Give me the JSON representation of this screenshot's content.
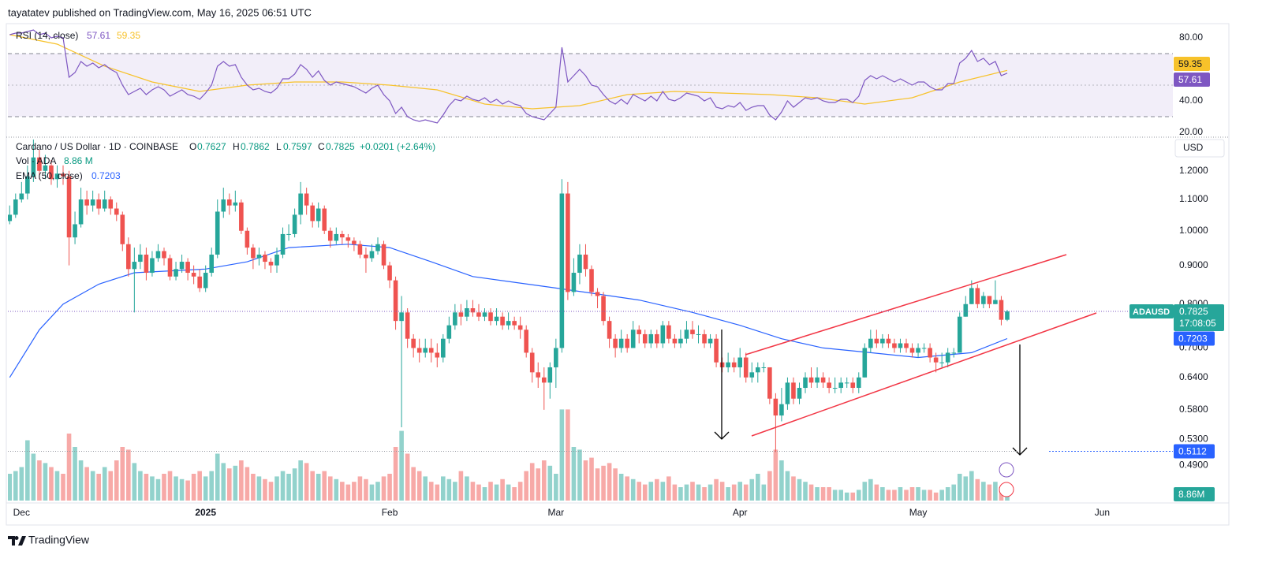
{
  "header": {
    "publisher": "tayatatev published on TradingView.com, May 16, 2025 06:51 UTC"
  },
  "footer": {
    "brand": "TradingView"
  },
  "chart_data": {
    "type": "candlestick",
    "title": "Cardano / US Dollar · 1D · COINBASE",
    "ohlc_letters": [
      "O",
      "H",
      "L",
      "C"
    ],
    "change": "+0.0201 (+2.64%)",
    "currency": "USD",
    "symbol": "ADAUSD",
    "countdown": "17:08:05",
    "log_scale": true,
    "up_color": "#26a69a",
    "down_color": "#ef5350",
    "last_price_color": "#7e57c2",
    "target": 0.5112,
    "target_color": "#2962ff",
    "first_open": 1.03,
    "close": [
      1.05,
      1.1,
      1.12,
      1.18,
      1.25,
      1.2,
      1.22,
      1.17,
      1.19,
      1.18,
      0.98,
      1.02,
      1.1,
      1.08,
      1.1,
      1.07,
      1.1,
      1.07,
      1.05,
      0.96,
      0.89,
      0.91,
      0.93,
      0.88,
      0.92,
      0.94,
      0.92,
      0.87,
      0.89,
      0.91,
      0.88,
      0.87,
      0.84,
      0.88,
      0.93,
      1.06,
      1.1,
      1.08,
      1.09,
      1.0,
      0.95,
      0.92,
      0.93,
      0.91,
      0.9,
      0.93,
      0.99,
      0.99,
      1.05,
      1.12,
      1.08,
      1.03,
      1.07,
      1.0,
      0.97,
      0.99,
      0.98,
      0.97,
      0.96,
      0.93,
      0.92,
      0.94,
      0.96,
      0.9,
      0.86,
      0.76,
      0.78,
      0.72,
      0.7,
      0.69,
      0.7,
      0.69,
      0.68,
      0.72,
      0.75,
      0.78,
      0.77,
      0.79,
      0.78,
      0.77,
      0.78,
      0.76,
      0.77,
      0.75,
      0.76,
      0.75,
      0.74,
      0.69,
      0.65,
      0.64,
      0.63,
      0.66,
      0.7,
      1.12,
      0.83,
      0.88,
      0.93,
      0.89,
      0.83,
      0.82,
      0.76,
      0.72,
      0.7,
      0.72,
      0.7,
      0.74,
      0.73,
      0.71,
      0.73,
      0.71,
      0.75,
      0.72,
      0.71,
      0.72,
      0.74,
      0.73,
      0.73,
      0.71,
      0.72,
      0.67,
      0.66,
      0.67,
      0.66,
      0.68,
      0.64,
      0.65,
      0.66,
      0.66,
      0.6,
      0.57,
      0.59,
      0.63,
      0.6,
      0.62,
      0.64,
      0.63,
      0.64,
      0.63,
      0.62,
      0.62,
      0.63,
      0.63,
      0.62,
      0.64,
      0.7,
      0.72,
      0.71,
      0.72,
      0.71,
      0.7,
      0.71,
      0.7,
      0.69,
      0.7,
      0.7,
      0.68,
      0.67,
      0.67,
      0.69,
      0.69,
      0.77,
      0.8,
      0.84,
      0.8,
      0.82,
      0.8,
      0.81,
      0.7627,
      0.7825
    ],
    "high": [
      1.08,
      1.12,
      1.16,
      1.22,
      1.32,
      1.28,
      1.26,
      1.24,
      1.22,
      1.22,
      1.2,
      1.06,
      1.14,
      1.13,
      1.13,
      1.12,
      1.13,
      1.11,
      1.09,
      1.06,
      0.98,
      0.95,
      0.96,
      0.95,
      0.94,
      0.96,
      0.95,
      0.93,
      0.91,
      0.93,
      0.92,
      0.9,
      0.89,
      0.9,
      0.95,
      1.1,
      1.14,
      1.12,
      1.13,
      1.1,
      1.01,
      0.96,
      0.95,
      0.94,
      0.92,
      0.95,
      1.01,
      1.02,
      1.07,
      1.16,
      1.14,
      1.09,
      1.09,
      1.08,
      1.01,
      1.01,
      1.0,
      0.99,
      0.98,
      0.97,
      0.95,
      0.96,
      0.98,
      0.97,
      0.91,
      0.87,
      0.82,
      0.79,
      0.73,
      0.72,
      0.72,
      0.72,
      0.71,
      0.73,
      0.77,
      0.8,
      0.8,
      0.81,
      0.81,
      0.8,
      0.79,
      0.79,
      0.79,
      0.78,
      0.78,
      0.77,
      0.77,
      0.75,
      0.7,
      0.67,
      0.66,
      0.67,
      0.72,
      1.17,
      1.16,
      0.92,
      0.96,
      0.96,
      0.9,
      0.84,
      0.83,
      0.77,
      0.73,
      0.74,
      0.73,
      0.76,
      0.75,
      0.74,
      0.74,
      0.74,
      0.76,
      0.76,
      0.73,
      0.74,
      0.76,
      0.76,
      0.75,
      0.74,
      0.73,
      0.73,
      0.68,
      0.69,
      0.68,
      0.7,
      0.69,
      0.67,
      0.67,
      0.67,
      0.66,
      0.61,
      0.62,
      0.64,
      0.64,
      0.63,
      0.65,
      0.66,
      0.66,
      0.65,
      0.64,
      0.64,
      0.64,
      0.64,
      0.64,
      0.65,
      0.71,
      0.74,
      0.74,
      0.73,
      0.73,
      0.72,
      0.72,
      0.72,
      0.71,
      0.71,
      0.71,
      0.71,
      0.69,
      0.69,
      0.7,
      0.7,
      0.78,
      0.82,
      0.86,
      0.85,
      0.83,
      0.82,
      0.86,
      0.82,
      0.7862
    ],
    "low": [
      1.02,
      1.04,
      1.09,
      1.1,
      1.16,
      1.17,
      1.17,
      1.15,
      1.14,
      1.15,
      0.9,
      0.96,
      1.01,
      1.05,
      1.06,
      1.05,
      1.06,
      1.05,
      1.03,
      0.94,
      0.87,
      0.78,
      0.89,
      0.86,
      0.87,
      0.91,
      0.9,
      0.86,
      0.86,
      0.88,
      0.86,
      0.85,
      0.83,
      0.83,
      0.87,
      0.92,
      1.04,
      1.05,
      1.06,
      0.99,
      0.93,
      0.89,
      0.9,
      0.89,
      0.88,
      0.88,
      0.92,
      0.97,
      0.98,
      1.02,
      1.05,
      1.01,
      1.01,
      0.99,
      0.95,
      0.96,
      0.96,
      0.95,
      0.94,
      0.92,
      0.88,
      0.91,
      0.93,
      0.89,
      0.84,
      0.74,
      0.55,
      0.7,
      0.68,
      0.67,
      0.68,
      0.67,
      0.66,
      0.67,
      0.71,
      0.74,
      0.75,
      0.76,
      0.77,
      0.76,
      0.76,
      0.75,
      0.75,
      0.74,
      0.74,
      0.74,
      0.72,
      0.68,
      0.63,
      0.62,
      0.58,
      0.6,
      0.62,
      0.69,
      0.81,
      0.82,
      0.85,
      0.87,
      0.82,
      0.79,
      0.75,
      0.7,
      0.68,
      0.69,
      0.69,
      0.7,
      0.71,
      0.7,
      0.7,
      0.7,
      0.7,
      0.71,
      0.7,
      0.7,
      0.71,
      0.72,
      0.71,
      0.7,
      0.7,
      0.66,
      0.65,
      0.65,
      0.65,
      0.64,
      0.63,
      0.63,
      0.63,
      0.65,
      0.59,
      0.51,
      0.56,
      0.58,
      0.59,
      0.59,
      0.61,
      0.62,
      0.62,
      0.62,
      0.61,
      0.61,
      0.61,
      0.62,
      0.61,
      0.61,
      0.64,
      0.69,
      0.7,
      0.7,
      0.7,
      0.69,
      0.69,
      0.69,
      0.68,
      0.68,
      0.69,
      0.67,
      0.65,
      0.66,
      0.66,
      0.68,
      0.69,
      0.77,
      0.8,
      0.79,
      0.79,
      0.79,
      0.8,
      0.75,
      0.7597
    ],
    "xlim": [
      -0.3,
      195.9
    ],
    "xticks": [
      {
        "value": 2,
        "label": "Dec"
      },
      {
        "value": 33,
        "label": "2025"
      },
      {
        "value": 64,
        "label": "Feb"
      },
      {
        "value": 92,
        "label": "Mar"
      },
      {
        "value": 123,
        "label": "Apr"
      },
      {
        "value": 153,
        "label": "May"
      },
      {
        "value": 184,
        "label": "Jun"
      }
    ],
    "ylim": [
      0.44,
      1.32
    ],
    "yticks": [
      {
        "value": 1.2,
        "label": "1.2000"
      },
      {
        "value": 1.1,
        "label": "1.1000"
      },
      {
        "value": 1.0,
        "label": "1.0000"
      },
      {
        "value": 0.9,
        "label": "0.9000"
      },
      {
        "value": 0.8,
        "label": "0.8000"
      },
      {
        "value": 0.7,
        "label": "0.7000"
      },
      {
        "value": 0.64,
        "label": "0.6400"
      },
      {
        "value": 0.58,
        "label": "0.5800"
      },
      {
        "value": 0.53,
        "label": "0.5300"
      },
      {
        "value": 0.49,
        "label": "0.4900"
      }
    ],
    "volume": {
      "title": "Vol · ADA",
      "label": "8.86 M",
      "badge": "8.86M",
      "values": [
        20,
        22,
        25,
        45,
        35,
        30,
        28,
        25,
        22,
        20,
        50,
        40,
        30,
        25,
        22,
        20,
        25,
        22,
        30,
        40,
        38,
        28,
        22,
        20,
        18,
        16,
        20,
        22,
        18,
        16,
        15,
        20,
        22,
        18,
        22,
        35,
        28,
        24,
        26,
        30,
        25,
        20,
        18,
        16,
        14,
        18,
        22,
        20,
        24,
        30,
        28,
        22,
        20,
        22,
        18,
        16,
        14,
        12,
        14,
        18,
        16,
        12,
        14,
        18,
        20,
        40,
        52,
        35,
        25,
        22,
        18,
        14,
        12,
        18,
        16,
        14,
        22,
        18,
        14,
        12,
        10,
        14,
        12,
        16,
        12,
        10,
        14,
        22,
        28,
        24,
        30,
        26,
        20,
        68,
        68,
        40,
        38,
        30,
        32,
        24,
        26,
        28,
        24,
        20,
        18,
        16,
        14,
        12,
        14,
        16,
        14,
        18,
        12,
        10,
        12,
        14,
        12,
        10,
        12,
        16,
        14,
        10,
        12,
        14,
        12,
        16,
        20,
        12,
        22,
        38,
        30,
        22,
        18,
        16,
        14,
        12,
        10,
        10,
        10,
        8,
        8,
        6,
        6,
        8,
        14,
        16,
        12,
        10,
        8,
        8,
        10,
        8,
        10,
        10,
        8,
        8,
        6,
        8,
        10,
        12,
        20,
        18,
        22,
        16,
        14,
        12,
        14,
        10,
        8.86
      ]
    },
    "ema": {
      "title": "EMA (50, close)",
      "color": "#2962ff",
      "x": [
        0,
        5,
        9,
        15,
        21,
        33,
        40,
        47,
        57,
        64,
        71,
        78,
        92,
        106,
        115,
        123,
        130,
        137,
        145,
        153,
        162,
        168
      ],
      "values": [
        0.64,
        0.74,
        0.8,
        0.85,
        0.88,
        0.89,
        0.91,
        0.95,
        0.96,
        0.95,
        0.91,
        0.87,
        0.84,
        0.81,
        0.78,
        0.75,
        0.72,
        0.7,
        0.69,
        0.68,
        0.69,
        0.7203
      ]
    },
    "rsi": {
      "title": "RSI (14, close)",
      "color": "#7e57c2",
      "ylim": [
        18,
        89
      ],
      "yticks": [
        {
          "value": 80,
          "label": "80.00"
        },
        {
          "value": 40,
          "label": "40.00"
        },
        {
          "value": 20,
          "label": "20.00"
        }
      ],
      "levels": [
        70,
        50,
        30
      ],
      "values": [
        82,
        83,
        83,
        84,
        85,
        82,
        83,
        80,
        81,
        80,
        55,
        58,
        65,
        62,
        64,
        61,
        63,
        60,
        58,
        50,
        44,
        46,
        48,
        44,
        47,
        49,
        47,
        43,
        45,
        47,
        44,
        43,
        41,
        45,
        50,
        62,
        65,
        62,
        63,
        55,
        50,
        47,
        48,
        46,
        45,
        48,
        54,
        54,
        57,
        63,
        60,
        55,
        59,
        53,
        50,
        52,
        51,
        50,
        49,
        47,
        45,
        48,
        50,
        44,
        40,
        32,
        36,
        30,
        28,
        27,
        28,
        27,
        26,
        31,
        37,
        41,
        40,
        43,
        41,
        40,
        42,
        39,
        41,
        38,
        40,
        38,
        37,
        32,
        30,
        29,
        28,
        32,
        36,
        74,
        52,
        56,
        60,
        56,
        50,
        49,
        44,
        40,
        38,
        41,
        38,
        44,
        42,
        40,
        43,
        40,
        46,
        41,
        40,
        42,
        45,
        44,
        43,
        40,
        42,
        36,
        35,
        37,
        36,
        39,
        34,
        36,
        37,
        37,
        31,
        28,
        33,
        40,
        36,
        39,
        42,
        41,
        42,
        40,
        39,
        39,
        41,
        41,
        39,
        43,
        53,
        56,
        54,
        56,
        54,
        52,
        54,
        52,
        50,
        52,
        52,
        49,
        47,
        47,
        51,
        51,
        64,
        67,
        72,
        65,
        67,
        63,
        65,
        56,
        57.61
      ],
      "ma": {
        "color": "#f7c22a",
        "x": [
          0,
          8,
          16,
          24,
          32,
          40,
          48,
          56,
          64,
          72,
          80,
          88,
          96,
          104,
          112,
          120,
          128,
          136,
          144,
          152,
          160,
          168
        ],
        "values": [
          82,
          76,
          62,
          52,
          46,
          50,
          52,
          52,
          50,
          47,
          38,
          35,
          37,
          44,
          46,
          45,
          44,
          42,
          38,
          42,
          52,
          59.35
        ]
      }
    }
  }
}
